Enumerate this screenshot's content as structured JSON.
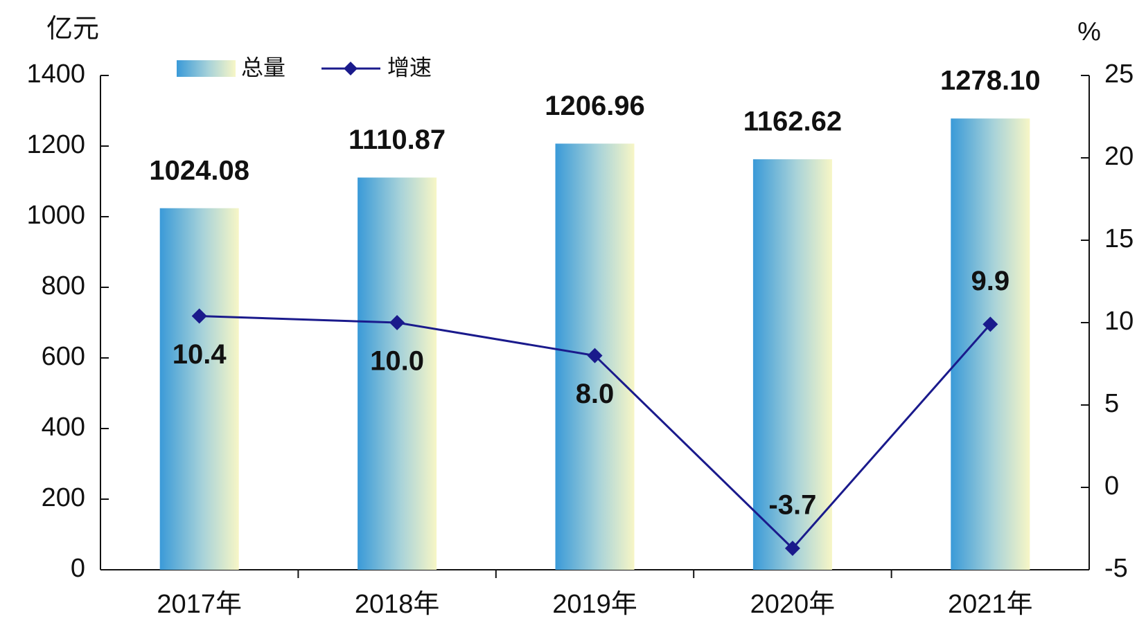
{
  "chart_data": {
    "type": "combo",
    "categories": [
      "2017年",
      "2018年",
      "2019年",
      "2020年",
      "2021年"
    ],
    "series": [
      {
        "name": "总量",
        "type": "bar",
        "values": [
          1024.08,
          1110.87,
          1206.96,
          1162.62,
          1278.1
        ],
        "value_labels": [
          "1024.08",
          "1110.87",
          "1206.96",
          "1162.62",
          "1278.10"
        ],
        "color": "#3a9ad8"
      },
      {
        "name": "增速",
        "type": "line",
        "axis": "y2",
        "values": [
          10.4,
          10.0,
          8.0,
          -3.7,
          9.9
        ],
        "value_labels": [
          "10.4",
          "10.0",
          "8.0",
          "-3.7",
          "9.9"
        ],
        "color": "#1a1a8c"
      }
    ],
    "y_label": "亿元",
    "y2_label": "%",
    "ylim": [
      0,
      1400
    ],
    "yticks": [
      0,
      200,
      400,
      600,
      800,
      1000,
      1200,
      1400
    ],
    "y2lim": [
      -5,
      25
    ],
    "y2ticks": [
      -5,
      0,
      5,
      10,
      15,
      20,
      25
    ],
    "legend": "top-left"
  }
}
